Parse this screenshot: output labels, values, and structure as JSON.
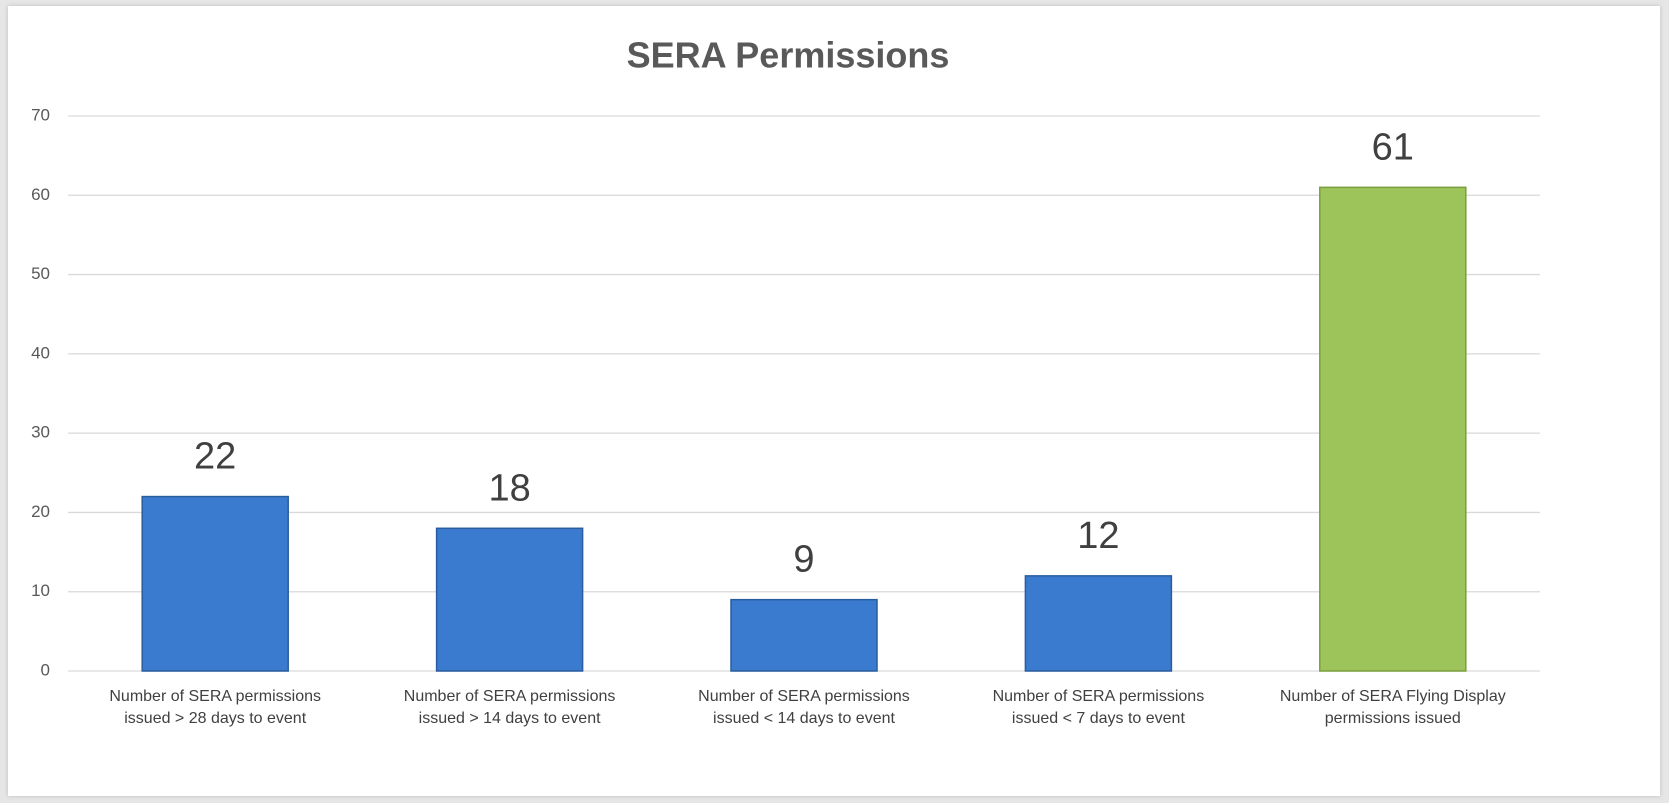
{
  "chart_data": {
    "type": "bar",
    "title": "SERA Permissions",
    "categories": [
      "Number of SERA permissions issued > 28 days to event",
      "Number of SERA permissions issued > 14 days to event",
      "Number of SERA permissions issued < 14 days to event",
      "Number of SERA permissions issued < 7 days to event",
      "Number of SERA Flying Display permissions issued"
    ],
    "values": [
      22,
      18,
      9,
      12,
      61
    ],
    "colors": [
      "#3a7bd0",
      "#3a7bd0",
      "#3a7bd0",
      "#3a7bd0",
      "#9dc45b"
    ],
    "ylim": [
      0,
      70
    ],
    "yticks": [
      0,
      10,
      20,
      30,
      40,
      50,
      60,
      70
    ],
    "grid": true
  }
}
